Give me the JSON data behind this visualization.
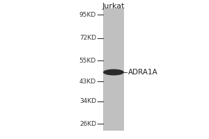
{
  "background_color": "#ffffff",
  "lane_color": "#c0c0c0",
  "band_color": "#2a2a2a",
  "lane_label": "Jurkat",
  "protein_label": "ADRA1A",
  "mw_markers": [
    95,
    72,
    55,
    43,
    34,
    26
  ],
  "mw_labels": [
    "95KD",
    "72KD",
    "55KD",
    "43KD",
    "34KD",
    "26KD"
  ],
  "band_mw": 48,
  "label_fontsize": 6.5,
  "lane_label_fontsize": 8,
  "tick_label_color": "#333333",
  "lane_color_gradient_dark": "#aaaaaa",
  "lane_color_gradient_light": "#d0d0d0"
}
